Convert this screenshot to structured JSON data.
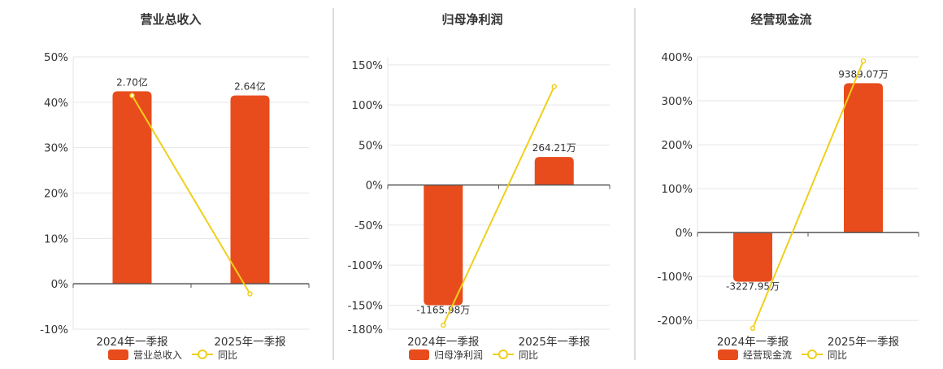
{
  "colors": {
    "bar": "#e84c1c",
    "line": "#f0cf1c",
    "grid": "#e6e6e6",
    "axis": "#555555",
    "divider": "#bbbbbb",
    "text": "#333333"
  },
  "chart_data": [
    {
      "type": "bar",
      "title": "营业总收入",
      "categories": [
        "2024年一季报",
        "2025年一季报"
      ],
      "series": [
        {
          "name": "营业总收入",
          "type": "bar",
          "values": [
            42.4,
            41.5
          ],
          "labels": [
            "2.70亿",
            "2.64亿"
          ]
        },
        {
          "name": "同比",
          "type": "line",
          "values": [
            41.5,
            -2.2
          ]
        }
      ],
      "ylim": [
        -10,
        50
      ],
      "yticks": [
        -10,
        0,
        10,
        20,
        30,
        40,
        50
      ],
      "ytick_labels": [
        "-10%",
        "0%",
        "10%",
        "20%",
        "30%",
        "40%",
        "50%"
      ],
      "grid": true,
      "legend": "bottom"
    },
    {
      "type": "bar",
      "title": "归母净利润",
      "categories": [
        "2024年一季报",
        "2025年一季报"
      ],
      "series": [
        {
          "name": "归母净利润",
          "type": "bar",
          "values": [
            -150,
            35
          ],
          "labels": [
            "-1165.98万",
            "264.21万"
          ]
        },
        {
          "name": "同比",
          "type": "line",
          "values": [
            -175,
            123
          ]
        }
      ],
      "ylim": [
        -180,
        160
      ],
      "yticks": [
        -180,
        -150,
        -100,
        -50,
        0,
        50,
        100,
        150
      ],
      "ytick_labels": [
        "-180%",
        "-150%",
        "-100%",
        "-50%",
        "0%",
        "50%",
        "100%",
        "150%"
      ],
      "grid": true,
      "legend": "bottom"
    },
    {
      "type": "bar",
      "title": "经营现金流",
      "categories": [
        "2024年一季报",
        "2025年一季报"
      ],
      "series": [
        {
          "name": "经营现金流",
          "type": "bar",
          "values": [
            -112,
            340
          ],
          "labels": [
            "-3227.95万",
            "9389.07万"
          ]
        },
        {
          "name": "同比",
          "type": "line",
          "values": [
            -218,
            391
          ]
        }
      ],
      "ylim": [
        -220,
        400
      ],
      "yticks": [
        -200,
        -100,
        0,
        100,
        200,
        300,
        400
      ],
      "ytick_labels": [
        "-200%",
        "-100%",
        "0%",
        "100%",
        "200%",
        "300%",
        "400%"
      ],
      "grid": true,
      "legend": "bottom"
    }
  ]
}
